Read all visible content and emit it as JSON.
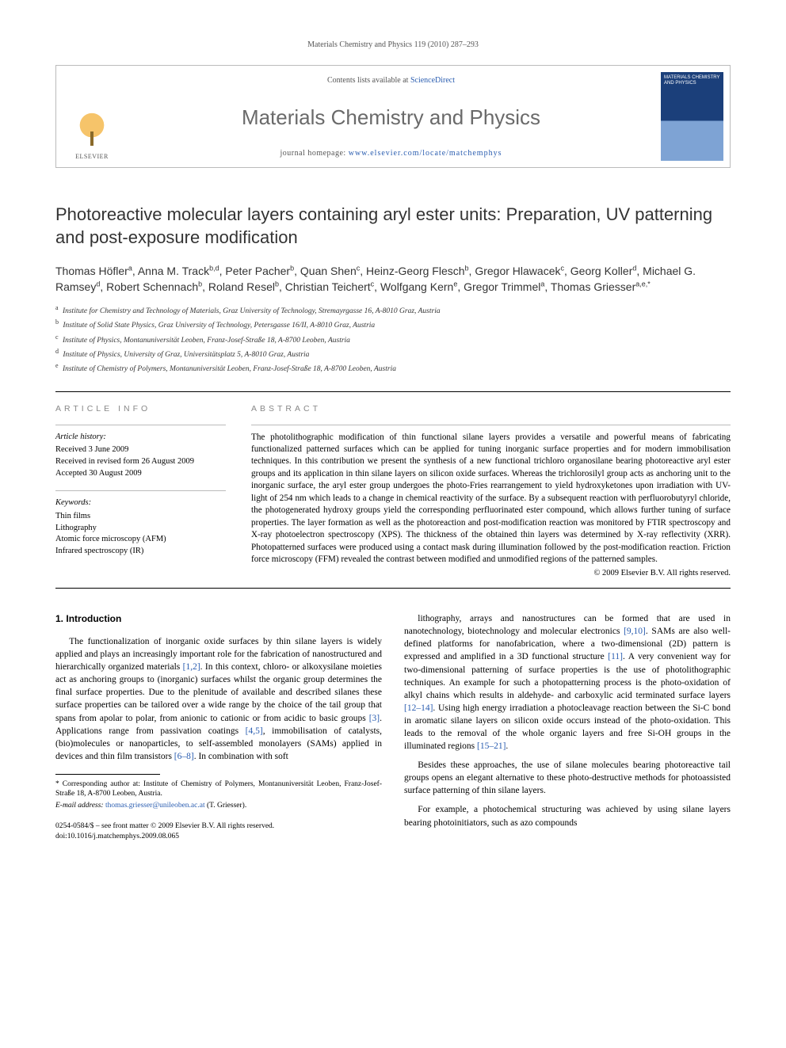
{
  "running_head": "Materials Chemistry and Physics 119 (2010) 287–293",
  "masthead": {
    "publisher": "ELSEVIER",
    "contents_prefix": "Contents lists available at ",
    "contents_link": "ScienceDirect",
    "journal_name": "Materials Chemistry and Physics",
    "homepage_prefix": "journal homepage: ",
    "homepage_url": "www.elsevier.com/locate/matchemphys",
    "cover_title": "MATERIALS CHEMISTRY AND PHYSICS"
  },
  "title": "Photoreactive molecular layers containing aryl ester units: Preparation, UV patterning and post-exposure modification",
  "authors_html": "Thomas Höfler<sup>a</sup>, Anna M. Track<sup>b,d</sup>, Peter Pacher<sup>b</sup>, Quan Shen<sup>c</sup>, Heinz-Georg Flesch<sup>b</sup>, Gregor Hlawacek<sup>c</sup>, Georg Koller<sup>d</sup>, Michael G. Ramsey<sup>d</sup>, Robert Schennach<sup>b</sup>, Roland Resel<sup>b</sup>, Christian Teichert<sup>c</sup>, Wolfgang Kern<sup>e</sup>, Gregor Trimmel<sup>a</sup>, Thomas Griesser<sup>a,e,*</sup>",
  "affiliations": [
    {
      "key": "a",
      "text": "Institute for Chemistry and Technology of Materials, Graz University of Technology, Stremayrgasse 16, A-8010 Graz, Austria"
    },
    {
      "key": "b",
      "text": "Institute of Solid State Physics, Graz University of Technology, Petersgasse 16/II, A-8010 Graz, Austria"
    },
    {
      "key": "c",
      "text": "Institute of Physics, Montanuniversität Leoben, Franz-Josef-Straße 18, A-8700 Leoben, Austria"
    },
    {
      "key": "d",
      "text": "Institute of Physics, University of Graz, Universitätsplatz 5, A-8010 Graz, Austria"
    },
    {
      "key": "e",
      "text": "Institute of Chemistry of Polymers, Montanuniversität Leoben, Franz-Josef-Straße 18, A-8700 Leoben, Austria"
    }
  ],
  "article_info": {
    "heading": "ARTICLE INFO",
    "history_head": "Article history:",
    "received": "Received 3 June 2009",
    "revised": "Received in revised form 26 August 2009",
    "accepted": "Accepted 30 August 2009",
    "keywords_head": "Keywords:",
    "keywords": [
      "Thin films",
      "Lithography",
      "Atomic force microscopy (AFM)",
      "Infrared spectroscopy (IR)"
    ]
  },
  "abstract": {
    "heading": "ABSTRACT",
    "text": "The photolithographic modification of thin functional silane layers provides a versatile and powerful means of fabricating functionalized patterned surfaces which can be applied for tuning inorganic surface properties and for modern immobilisation techniques. In this contribution we present the synthesis of a new functional trichloro organosilane bearing photoreactive aryl ester groups and its application in thin silane layers on silicon oxide surfaces. Whereas the trichlorosilyl group acts as anchoring unit to the inorganic surface, the aryl ester group undergoes the photo-Fries rearrangement to yield hydroxyketones upon irradiation with UV-light of 254 nm which leads to a change in chemical reactivity of the surface. By a subsequent reaction with perfluorobutyryl chloride, the photogenerated hydroxy groups yield the corresponding perfluorinated ester compound, which allows further tuning of surface properties. The layer formation as well as the photoreaction and post-modification reaction was monitored by FTIR spectroscopy and X-ray photoelectron spectroscopy (XPS). The thickness of the obtained thin layers was determined by X-ray reflectivity (XRR). Photopatterned surfaces were produced using a contact mask during illumination followed by the post-modification reaction. Friction force microscopy (FFM) revealed the contrast between modified and unmodified regions of the patterned samples.",
    "copyright": "© 2009 Elsevier B.V. All rights reserved."
  },
  "body": {
    "section_number": "1.",
    "section_title": "Introduction",
    "p1": "The functionalization of inorganic oxide surfaces by thin silane layers is widely applied and plays an increasingly important role for the fabrication of nanostructured and hierarchically organized materials [1,2]. In this context, chloro- or alkoxysilane moieties act as anchoring groups to (inorganic) surfaces whilst the organic group determines the final surface properties. Due to the plenitude of available and described silanes these surface properties can be tailored over a wide range by the choice of the tail group that spans from apolar to polar, from anionic to cationic or from acidic to basic groups [3]. Applications range from passivation coatings [4,5], immobilisation of catalysts, (bio)molecules or nanoparticles, to self-assembled monolayers (SAMs) applied in devices and thin film transistors [6–8]. In combination with soft",
    "p2": "lithography, arrays and nanostructures can be formed that are used in nanotechnology, biotechnology and molecular electronics [9,10]. SAMs are also well-defined platforms for nanofabrication, where a two-dimensional (2D) pattern is expressed and amplified in a 3D functional structure [11]. A very convenient way for two-dimensional patterning of surface properties is the use of photolithographic techniques. An example for such a photopatterning process is the photo-oxidation of alkyl chains which results in aldehyde- and carboxylic acid terminated surface layers [12–14]. Using high energy irradiation a photocleavage reaction between the Si-C bond in aromatic silane layers on silicon oxide occurs instead of the photo-oxidation. This leads to the removal of the whole organic layers and free Si-OH groups in the illuminated regions [15–21].",
    "p3": "Besides these approaches, the use of silane molecules bearing photoreactive tail groups opens an elegant alternative to these photo-destructive methods for photoassisted surface patterning of thin silane layers.",
    "p4": "For example, a photochemical structuring was achieved by using silane layers bearing photoinitiators, such as azo compounds"
  },
  "footnotes": {
    "corresponding": "* Corresponding author at: Institute of Chemistry of Polymers, Montanuniversität Leoben, Franz-Josef-Straße 18, A-8700 Leoben, Austria.",
    "email_label": "E-mail address:",
    "email": "thomas.griesser@unileoben.ac.at",
    "email_who": " (T. Griesser)."
  },
  "docfoot": {
    "line1": "0254-0584/$ – see front matter © 2009 Elsevier B.V. All rights reserved.",
    "line2": "doi:10.1016/j.matchemphys.2009.08.065"
  },
  "colors": {
    "link": "#2a5db0",
    "text": "#000000",
    "light_text": "#555555",
    "journal_gray": "#6a6a6a"
  }
}
